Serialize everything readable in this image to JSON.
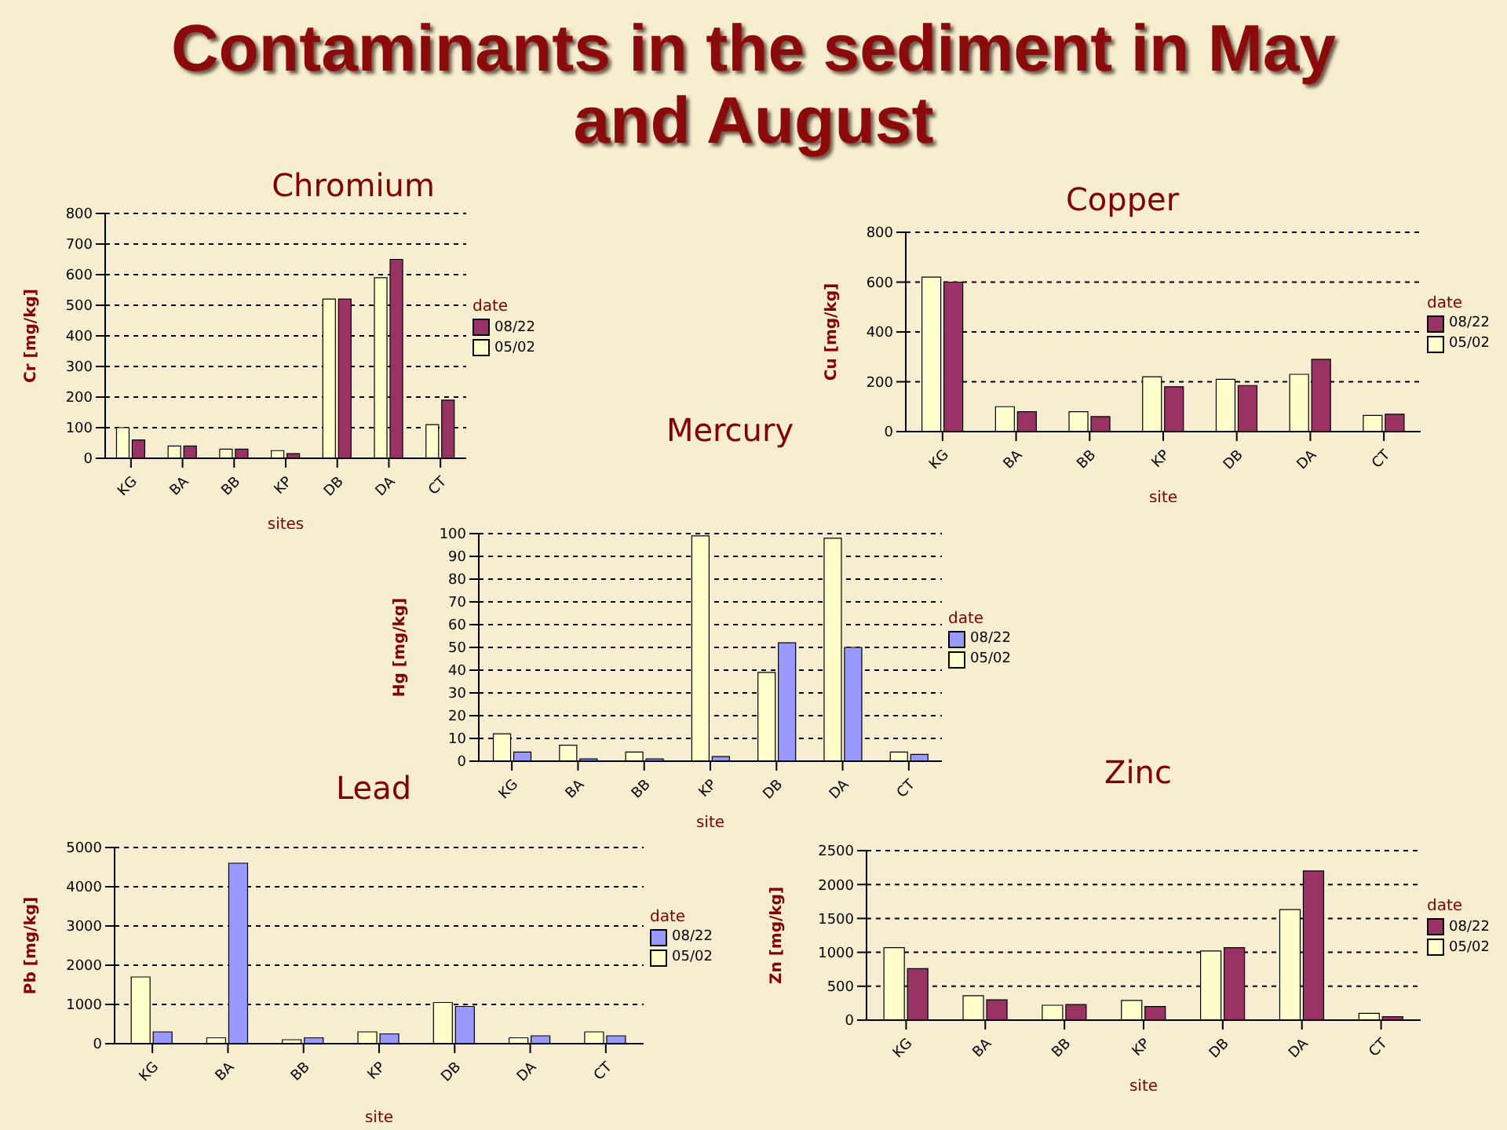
{
  "chart_data": [
    {
      "type": "other",
      "title": "Contaminants in the sediment in May and August"
    },
    {
      "type": "bar",
      "title": "Chromium",
      "xlabel": "sites",
      "ylabel": "Cr [mg/kg]",
      "legend_title": "date",
      "categories": [
        "KG",
        "BA",
        "BB",
        "KP",
        "DB",
        "DA",
        "CT"
      ],
      "series": [
        {
          "name": "05/02",
          "color": "#ffffcc",
          "values": [
            100,
            40,
            30,
            25,
            520,
            590,
            110
          ]
        },
        {
          "name": "08/22",
          "color": "#993366",
          "values": [
            60,
            40,
            30,
            15,
            520,
            650,
            190
          ]
        }
      ],
      "ylim": [
        0,
        800
      ],
      "yticks": [
        0,
        100,
        200,
        300,
        400,
        500,
        600,
        700,
        800
      ],
      "grid": "y",
      "legend": "right"
    },
    {
      "type": "bar",
      "title": "Copper",
      "xlabel": "site",
      "ylabel": "Cu [mg/kg]",
      "legend_title": "date",
      "categories": [
        "KG",
        "BA",
        "BB",
        "KP",
        "DB",
        "DA",
        "CT"
      ],
      "series": [
        {
          "name": "05/02",
          "color": "#ffffcc",
          "values": [
            620,
            100,
            80,
            220,
            210,
            230,
            65
          ]
        },
        {
          "name": "08/22",
          "color": "#993366",
          "values": [
            600,
            80,
            60,
            180,
            185,
            290,
            70
          ]
        }
      ],
      "ylim": [
        0,
        800
      ],
      "yticks": [
        0,
        200,
        400,
        600,
        800
      ],
      "grid": "y",
      "legend": "right"
    },
    {
      "type": "bar",
      "title": "Mercury",
      "xlabel": "site",
      "ylabel": "Hg [mg/kg]",
      "legend_title": "date",
      "categories": [
        "KG",
        "BA",
        "BB",
        "KP",
        "DB",
        "DA",
        "CT"
      ],
      "series": [
        {
          "name": "05/02",
          "color": "#ffffcc",
          "values": [
            12,
            7,
            4,
            99,
            39,
            98,
            4
          ]
        },
        {
          "name": "08/22",
          "color": "#9999ff",
          "values": [
            4,
            1,
            1,
            2,
            52,
            50,
            3
          ]
        }
      ],
      "ylim": [
        0,
        100
      ],
      "yticks": [
        0,
        10,
        20,
        30,
        40,
        50,
        60,
        70,
        80,
        90,
        100
      ],
      "grid": "y",
      "legend": "right"
    },
    {
      "type": "bar",
      "title": "Lead",
      "xlabel": "site",
      "ylabel": "Pb [mg/kg]",
      "legend_title": "date",
      "categories": [
        "KG",
        "BA",
        "BB",
        "KP",
        "DB",
        "DA",
        "CT"
      ],
      "series": [
        {
          "name": "05/02",
          "color": "#ffffcc",
          "values": [
            1700,
            150,
            100,
            300,
            1050,
            150,
            300
          ]
        },
        {
          "name": "08/22",
          "color": "#9999ff",
          "values": [
            300,
            4600,
            150,
            250,
            950,
            200,
            200
          ]
        }
      ],
      "ylim": [
        0,
        5000
      ],
      "yticks": [
        0,
        1000,
        2000,
        3000,
        4000,
        5000
      ],
      "grid": "y",
      "legend": "right"
    },
    {
      "type": "bar",
      "title": "Zinc",
      "xlabel": "site",
      "ylabel": "Zn [mg/kg]",
      "legend_title": "date",
      "categories": [
        "KG",
        "BA",
        "BB",
        "KP",
        "DB",
        "DA",
        "CT"
      ],
      "series": [
        {
          "name": "05/02",
          "color": "#ffffcc",
          "values": [
            1070,
            360,
            220,
            290,
            1020,
            1630,
            100
          ]
        },
        {
          "name": "08/22",
          "color": "#993366",
          "values": [
            760,
            300,
            230,
            200,
            1070,
            2200,
            50
          ]
        }
      ],
      "ylim": [
        0,
        2500
      ],
      "yticks": [
        0,
        500,
        1000,
        1500,
        2000,
        2500
      ],
      "grid": "y",
      "legend": "right"
    }
  ]
}
